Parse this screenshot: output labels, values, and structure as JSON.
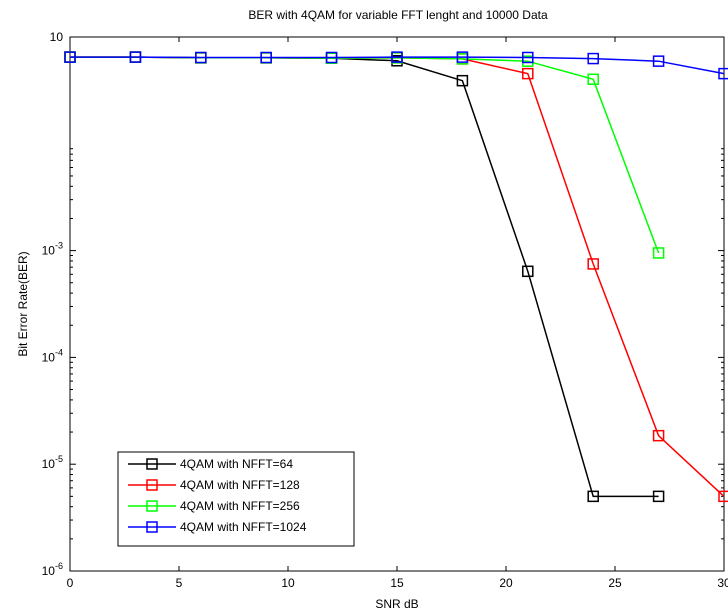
{
  "chart_data": {
    "type": "line",
    "title": "BER with 4QAM for variable FFT lenght and 10000 Data",
    "xlabel": "SNR dB",
    "ylabel": "Bit Error Rate(BER)",
    "xlim": [
      0,
      30
    ],
    "ylim": [
      1e-06,
      0.1
    ],
    "yscale": "log",
    "grid": false,
    "legend_position": "bottom-left",
    "x_ticks": [
      "0",
      "5",
      "10",
      "15",
      "20",
      "25",
      "30"
    ],
    "y_ticks": [
      {
        "base": "10",
        "exp": "-6"
      },
      {
        "base": "10",
        "exp": "-5"
      },
      {
        "base": "10",
        "exp": "-4"
      },
      {
        "base": "10",
        "exp": "-3"
      },
      {
        "base": "10",
        "exp": ""
      }
    ],
    "marker": "square",
    "series": [
      {
        "name": "4QAM with NFFT=64",
        "color": "#000000",
        "x": [
          0,
          3,
          6,
          9,
          12,
          15,
          18,
          21,
          24,
          27
        ],
        "y": [
          0.0648,
          0.0648,
          0.0638,
          0.0638,
          0.0633,
          0.0599,
          0.039,
          0.00064,
          5e-06,
          5e-06
        ]
      },
      {
        "name": "4QAM with NFFT=128",
        "color": "#ff0000",
        "x": [
          0,
          3,
          6,
          9,
          12,
          15,
          18,
          21,
          24,
          27,
          30
        ],
        "y": [
          0.0648,
          0.0648,
          0.0638,
          0.0638,
          0.0633,
          0.0638,
          0.0624,
          0.0454,
          0.00075,
          1.85e-05,
          5e-06
        ]
      },
      {
        "name": "4QAM with NFFT=256",
        "color": "#00ff00",
        "x": [
          0,
          3,
          6,
          9,
          12,
          15,
          18,
          21,
          24,
          27
        ],
        "y": [
          0.0648,
          0.0648,
          0.0638,
          0.0638,
          0.0633,
          0.0638,
          0.0624,
          0.0594,
          0.0402,
          0.00095
        ]
      },
      {
        "name": "4QAM with NFFT=1024",
        "color": "#0000ff",
        "x": [
          0,
          3,
          6,
          9,
          12,
          15,
          18,
          21,
          24,
          27,
          30
        ],
        "y": [
          0.0648,
          0.0648,
          0.0643,
          0.0643,
          0.0643,
          0.0648,
          0.0648,
          0.0643,
          0.0628,
          0.0594,
          0.0454
        ]
      }
    ]
  }
}
